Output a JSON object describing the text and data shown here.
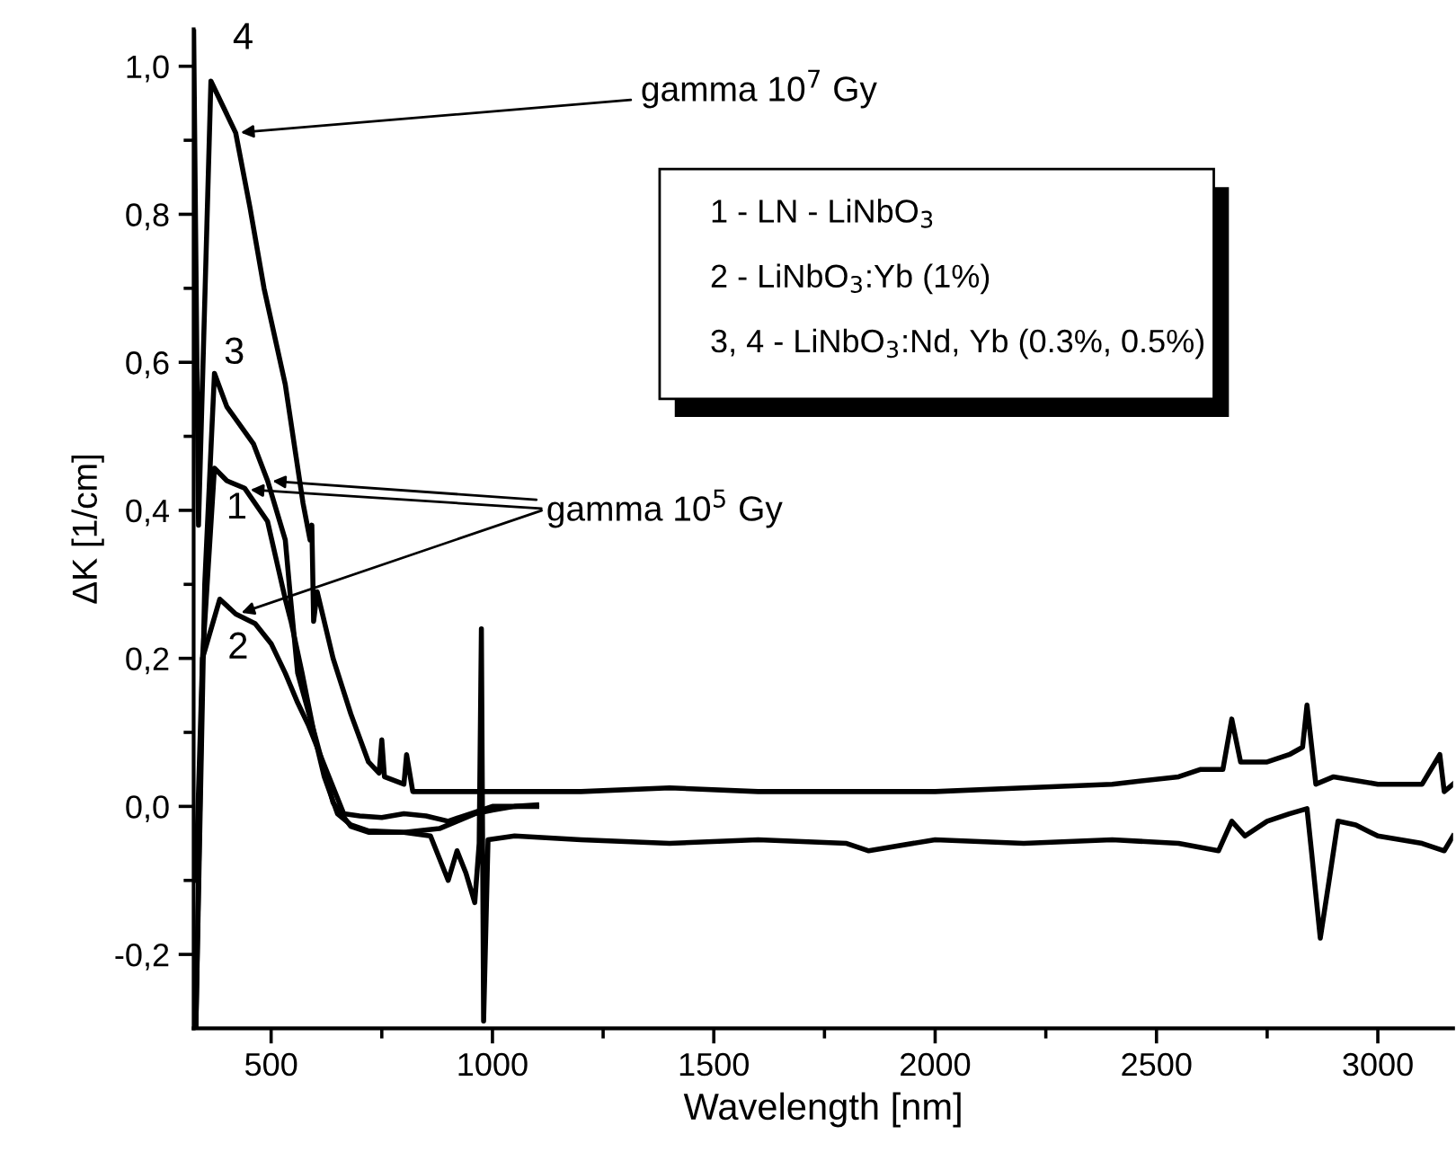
{
  "chart_data": {
    "type": "line",
    "xlabel": "Wavelength [nm]",
    "ylabel": "ΔK [1/cm]",
    "xlim": [
      325,
      3170
    ],
    "ylim": [
      -0.3,
      1.05
    ],
    "xticks": [
      500,
      {
        "value": 750,
        "label": null
      },
      1000,
      {
        "value": 1250,
        "label": null
      },
      1500,
      {
        "value": 1750,
        "label": null
      },
      2000,
      {
        "value": 2250,
        "label": null
      },
      2500,
      {
        "value": 2750,
        "label": null
      },
      3000
    ],
    "yticks": [
      {
        "value": -0.2,
        "label": "-0,2"
      },
      {
        "value": -0.1,
        "label": null
      },
      {
        "value": 0,
        "label": "0,0"
      },
      {
        "value": 0.1,
        "label": null
      },
      {
        "value": 0.2,
        "label": "0,2"
      },
      {
        "value": 0.3,
        "label": null
      },
      {
        "value": 0.4,
        "label": "0,4"
      },
      {
        "value": 0.5,
        "label": null
      },
      {
        "value": 0.6,
        "label": "0,6"
      },
      {
        "value": 0.7,
        "label": null
      },
      {
        "value": 0.8,
        "label": "0,8"
      },
      {
        "value": 0.9,
        "label": null
      },
      {
        "value": 1.0,
        "label": "1,0"
      }
    ],
    "grid": false,
    "marker": "none",
    "line_style": "solid",
    "series": [
      {
        "color": "#000000",
        "x": [
          330,
          345,
          372,
          400,
          440,
          492,
          532,
          545,
          570,
          600,
          620,
          650,
          680,
          720,
          800,
          880,
          920,
          960,
          1000,
          1050,
          1100
        ],
        "values": [
          -0.3,
          0.2,
          0.457,
          0.44,
          0.43,
          0.385,
          0.28,
          0.25,
          0.18,
          0.09,
          0.04,
          -0.01,
          -0.025,
          -0.033,
          -0.035,
          -0.03,
          -0.02,
          -0.01,
          -0.005,
          0.0,
          0.002
        ]
      },
      {
        "color": "#000000",
        "x": [
          330,
          345,
          384,
          420,
          464,
          500,
          532,
          560,
          584,
          624,
          664,
          700,
          750,
          800,
          850,
          900,
          950,
          1000,
          1050,
          1100
        ],
        "values": [
          -0.1,
          0.2,
          0.28,
          0.26,
          0.247,
          0.22,
          0.18,
          0.14,
          0.11,
          0.05,
          -0.01,
          -0.013,
          -0.015,
          -0.01,
          -0.013,
          -0.02,
          -0.01,
          0.0,
          0.0,
          0.0
        ]
      },
      {
        "color": "#000000",
        "x": [
          330,
          350,
          372,
          400,
          460,
          492,
          532,
          544,
          560,
          600,
          640,
          680,
          720,
          800,
          860,
          880,
          900,
          920,
          940,
          960,
          970,
          975,
          980,
          990,
          1050,
          1200,
          1400,
          1600,
          1800,
          1850,
          2000,
          2200,
          2400,
          2550,
          2640,
          2670,
          2700,
          2750,
          2800,
          2840,
          2850,
          2870,
          2890,
          2910,
          2950,
          3000,
          3100,
          3150,
          3170
        ],
        "values": [
          -0.3,
          0.3,
          0.585,
          0.54,
          0.49,
          0.44,
          0.36,
          0.28,
          0.18,
          0.094,
          0.005,
          -0.027,
          -0.035,
          -0.035,
          -0.04,
          -0.07,
          -0.1,
          -0.06,
          -0.09,
          -0.13,
          -0.05,
          0.24,
          -0.29,
          -0.045,
          -0.04,
          -0.045,
          -0.05,
          -0.045,
          -0.05,
          -0.06,
          -0.045,
          -0.05,
          -0.045,
          -0.05,
          -0.06,
          -0.02,
          -0.04,
          -0.02,
          -0.01,
          -0.003,
          -0.06,
          -0.178,
          -0.1,
          -0.02,
          -0.025,
          -0.04,
          -0.05,
          -0.06,
          -0.04
        ]
      },
      {
        "color": "#000000",
        "x": [
          325,
          336,
          364,
          420,
          452,
          484,
          532,
          572,
          588,
          592,
          596,
          604,
          640,
          680,
          720,
          744,
          750,
          756,
          800,
          806,
          820,
          900,
          1000,
          1200,
          1400,
          1600,
          1800,
          2000,
          2200,
          2400,
          2550,
          2600,
          2650,
          2670,
          2690,
          2750,
          2800,
          2830,
          2840,
          2860,
          2900,
          3000,
          3100,
          3140,
          3150,
          3170
        ],
        "values": [
          1.05,
          0.38,
          0.98,
          0.91,
          0.81,
          0.7,
          0.57,
          0.41,
          0.36,
          0.38,
          0.25,
          0.29,
          0.2,
          0.125,
          0.06,
          0.045,
          0.09,
          0.04,
          0.03,
          0.07,
          0.02,
          0.02,
          0.02,
          0.02,
          0.025,
          0.02,
          0.02,
          0.02,
          0.025,
          0.03,
          0.04,
          0.05,
          0.05,
          0.118,
          0.06,
          0.06,
          0.07,
          0.08,
          0.137,
          0.03,
          0.04,
          0.03,
          0.03,
          0.07,
          0.02,
          0.03
        ]
      }
    ],
    "annotations": [
      {
        "text": "gamma 10$^{7}$ Gy",
        "x": 420,
        "y": 0.91
      },
      {
        "text": "gamma 10$^{5}$ Gy",
        "x": 492,
        "y": 0.44
      },
      "1 - LN - LiNbO$_{3}$",
      "2 - LiNbO$_{3}$:Yb (1%)",
      "3, 4 - LiNbO$_{3}$:Nd, Yb (0.3%, 0.5%)",
      "4",
      "3",
      "1",
      "2"
    ]
  }
}
